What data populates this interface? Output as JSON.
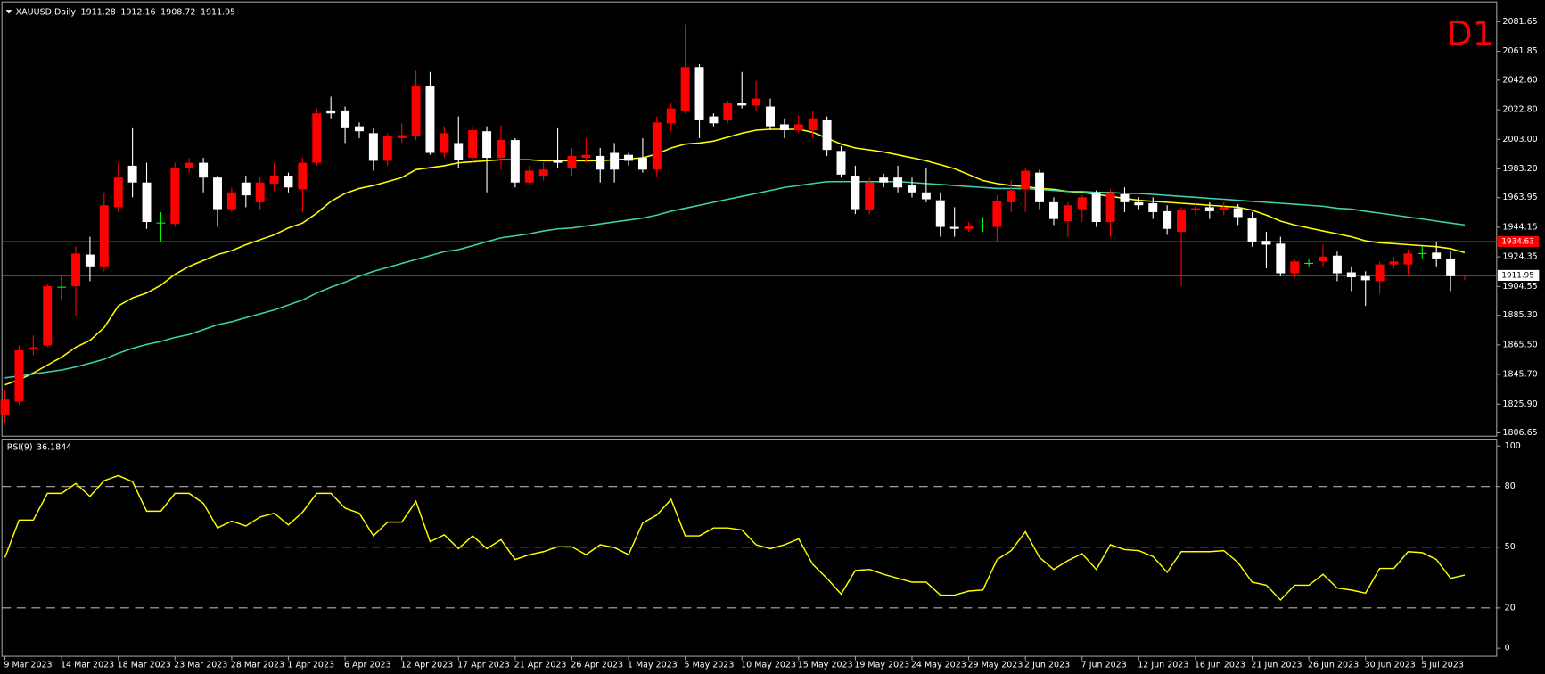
{
  "chart_data": [
    {
      "type": "candlestick",
      "symbol": "XAUUSD,Daily",
      "timeframe": "D1",
      "categories": [
        "9 Mar 2023",
        null,
        null,
        null,
        "14 Mar 2023",
        null,
        null,
        null,
        "18 Mar 2023",
        null,
        null,
        null,
        "23 Mar 2023",
        null,
        null,
        null,
        "28 Mar 2023",
        null,
        null,
        null,
        "1 Apr 2023",
        null,
        null,
        null,
        "6 Apr 2023",
        null,
        null,
        null,
        "12 Apr 2023",
        null,
        null,
        null,
        "17 Apr 2023",
        null,
        null,
        null,
        "21 Apr 2023",
        null,
        null,
        null,
        "26 Apr 2023",
        null,
        null,
        null,
        "1 May 2023",
        null,
        null,
        null,
        "5 May 2023",
        null,
        null,
        null,
        "10 May 2023",
        null,
        null,
        null,
        "15 May 2023",
        null,
        null,
        null,
        "19 May 2023",
        null,
        null,
        null,
        "24 May 2023",
        null,
        null,
        null,
        "29 May 2023",
        null,
        null,
        null,
        "2 Jun 2023",
        null,
        null,
        null,
        "7 Jun 2023",
        null,
        null,
        null,
        "12 Jun 2023",
        null,
        null,
        null,
        "16 Jun 2023",
        null,
        null,
        null,
        "21 Jun 2023",
        null,
        null,
        null,
        "26 Jun 2023",
        null,
        null,
        null,
        "30 Jun 2023",
        null,
        null,
        null,
        "5 Jul 2023",
        null,
        null,
        null
      ],
      "open": [
        1819.0,
        1827.6,
        1862.5,
        1865.2,
        1904.1,
        1904.8,
        1925.9,
        1918.0,
        1957.6,
        1985.3,
        1974.1,
        1947.0,
        1946.4,
        1984.0,
        1987.3,
        1977.4,
        1956.3,
        1974.1,
        1960.9,
        1973.4,
        1978.7,
        1969.5,
        1987.3,
        2022.3,
        2022.3,
        2011.7,
        2007.1,
        1988.6,
        2003.8,
        2005.1,
        2038.8,
        1993.9,
        2000.5,
        1990.6,
        2008.4,
        1990.6,
        2002.5,
        1974.1,
        1978.7,
        1989.3,
        1984.0,
        1990.6,
        1991.9,
        1993.9,
        1992.6,
        1990.6,
        1982.7,
        2013.7,
        2022.3,
        2051.3,
        2018.3,
        2015.7,
        2027.5,
        2025.6,
        2024.9,
        2013.0,
        2009.1,
        2009.1,
        2015.7,
        1995.2,
        1978.7,
        1955.6,
        1977.4,
        1977.4,
        1972.1,
        1967.5,
        1962.2,
        1944.4,
        1943.1,
        1945.0,
        1944.4,
        1960.9,
        1969.5,
        1980.7,
        1960.9,
        1948.3,
        1956.3,
        1967.5,
        1947.7,
        1966.2,
        1960.9,
        1960.2,
        1954.9,
        1941.1,
        1955.6,
        1957.6,
        1955.6,
        1956.9,
        1950.3,
        1935.1,
        1933.2,
        1913.4,
        1920.0,
        1921.3,
        1925.2,
        1914.0,
        1911.4,
        1908.1,
        1919.3,
        1919.3,
        1926.6,
        1927.2,
        1923.3,
        1911.28
      ],
      "high": [
        1835.5,
        1865.2,
        1871.8,
        1906.1,
        1911.4,
        1931.2,
        1937.8,
        1967.5,
        1987.3,
        2010.4,
        1987.3,
        1954.3,
        1987.3,
        1990.6,
        1990.6,
        1978.7,
        1970.8,
        1978.7,
        1977.4,
        1987.3,
        1980.7,
        1990.6,
        2023.6,
        2031.5,
        2024.9,
        2014.3,
        2010.4,
        2007.1,
        2013.7,
        2048.7,
        2048.0,
        2011.7,
        2018.3,
        2011.7,
        2011.7,
        2012.4,
        2003.8,
        1985.3,
        1987.3,
        2010.4,
        1997.2,
        2003.8,
        1997.2,
        2000.5,
        1993.9,
        2003.8,
        2018.3,
        2026.9,
        2079.7,
        2053.3,
        2020.3,
        2028.9,
        2048.0,
        2042.1,
        2030.2,
        2017.0,
        2019.0,
        2022.3,
        2018.3,
        1998.5,
        1985.3,
        1977.4,
        1980.0,
        1985.3,
        1977.4,
        1984.0,
        1967.5,
        1957.6,
        1947.7,
        1951.0,
        1965.5,
        1975.4,
        1984.0,
        1982.7,
        1964.2,
        1960.9,
        1965.5,
        1968.8,
        1969.5,
        1970.8,
        1964.2,
        1964.2,
        1958.9,
        1957.6,
        1960.9,
        1960.9,
        1960.9,
        1959.6,
        1954.3,
        1941.1,
        1937.8,
        1923.3,
        1923.3,
        1932.5,
        1927.9,
        1918.0,
        1914.7,
        1921.3,
        1924.6,
        1929.2,
        1931.2,
        1934.5,
        1927.9,
        1912.16
      ],
      "low": [
        1813.7,
        1825.6,
        1858.6,
        1863.9,
        1894.9,
        1885.0,
        1908.1,
        1914.7,
        1954.3,
        1964.2,
        1943.1,
        1934.5,
        1944.4,
        1980.7,
        1967.5,
        1944.4,
        1954.3,
        1957.6,
        1955.6,
        1968.8,
        1967.5,
        1954.3,
        1985.3,
        2017.0,
        2000.5,
        2003.8,
        1982.0,
        1985.3,
        2000.5,
        2002.5,
        1992.6,
        1990.6,
        1984.0,
        1987.3,
        1967.5,
        1982.7,
        1970.8,
        1972.1,
        1975.4,
        1984.0,
        1978.7,
        1987.3,
        1974.1,
        1974.1,
        1985.3,
        1980.7,
        1977.4,
        2008.4,
        2020.3,
        2003.8,
        2011.7,
        2013.7,
        2023.6,
        2022.3,
        2009.1,
        2003.8,
        2007.1,
        2003.8,
        1991.9,
        1977.4,
        1953.0,
        1953.0,
        1970.8,
        1967.5,
        1964.2,
        1960.9,
        1937.8,
        1937.8,
        1941.1,
        1941.1,
        1933.8,
        1954.3,
        1954.3,
        1956.3,
        1945.7,
        1937.8,
        1947.7,
        1944.4,
        1937.8,
        1954.3,
        1956.3,
        1949.7,
        1939.1,
        1904.8,
        1952.3,
        1949.7,
        1952.3,
        1945.7,
        1931.2,
        1916.7,
        1911.4,
        1910.1,
        1918.0,
        1918.0,
        1908.1,
        1901.5,
        1891.6,
        1899.5,
        1916.7,
        1912.7,
        1923.3,
        1918.0,
        1901.5,
        1908.72
      ],
      "close": [
        1828.9,
        1861.9,
        1863.9,
        1904.8,
        1904.1,
        1926.6,
        1918.0,
        1958.9,
        1977.4,
        1974.1,
        1947.7,
        1947.0,
        1984.0,
        1987.3,
        1977.4,
        1956.3,
        1967.5,
        1965.5,
        1974.1,
        1978.7,
        1970.8,
        1987.3,
        2020.3,
        2020.3,
        2010.4,
        2008.4,
        1988.6,
        2005.1,
        2005.8,
        2038.8,
        1993.9,
        2007.1,
        1989.3,
        2009.1,
        1990.6,
        2002.5,
        1974.1,
        1982.0,
        1982.7,
        1987.3,
        1991.9,
        1992.6,
        1982.7,
        1982.7,
        1988.6,
        1982.7,
        2014.3,
        2023.6,
        2051.3,
        2015.7,
        2013.7,
        2027.5,
        2025.6,
        2030.2,
        2011.7,
        2009.1,
        2013.0,
        2017.0,
        1995.9,
        1979.4,
        1956.3,
        1974.1,
        1974.1,
        1970.8,
        1967.5,
        1962.9,
        1944.4,
        1943.1,
        1945.0,
        1945.0,
        1961.5,
        1968.8,
        1982.0,
        1960.9,
        1949.7,
        1958.9,
        1964.2,
        1947.7,
        1967.5,
        1960.9,
        1958.9,
        1954.3,
        1943.1,
        1955.6,
        1956.9,
        1954.9,
        1957.6,
        1951.0,
        1934.5,
        1932.5,
        1913.4,
        1921.3,
        1920.0,
        1924.6,
        1913.4,
        1910.7,
        1908.7,
        1919.3,
        1921.3,
        1926.6,
        1926.6,
        1923.3,
        1911.4,
        1911.95
      ],
      "up_color": "#ff0000",
      "down_color": "#ffffff",
      "doji_color": "#00ff00",
      "series": [
        {
          "color": "#ffff00",
          "values": [
            1838.8,
            1842.1,
            1846.7,
            1852.0,
            1857.3,
            1863.9,
            1868.5,
            1877.1,
            1891.6,
            1896.9,
            1900.2,
            1905.4,
            1912.7,
            1918.0,
            1921.9,
            1925.9,
            1928.5,
            1932.5,
            1935.8,
            1939.1,
            1943.7,
            1947.0,
            1953.6,
            1961.5,
            1966.8,
            1970.1,
            1972.1,
            1974.7,
            1977.4,
            1982.7,
            1984.0,
            1985.3,
            1987.3,
            1987.9,
            1988.6,
            1989.3,
            1989.3,
            1989.3,
            1988.6,
            1988.6,
            1988.6,
            1988.6,
            1988.6,
            1989.3,
            1989.9,
            1990.6,
            1993.2,
            1997.2,
            1999.8,
            2000.5,
            2001.8,
            2004.4,
            2007.1,
            2009.1,
            2009.7,
            2009.7,
            2009.7,
            2007.7,
            2003.8,
            1999.8,
            1997.2,
            1995.9,
            1994.5,
            1992.6,
            1990.6,
            1988.6,
            1986.0,
            1983.3,
            1979.4,
            1975.4,
            1973.4,
            1972.1,
            1971.4,
            1970.1,
            1969.5,
            1968.1,
            1967.5,
            1966.2,
            1964.8,
            1963.5,
            1962.2,
            1961.5,
            1960.9,
            1960.2,
            1959.6,
            1958.9,
            1958.2,
            1957.6,
            1955.6,
            1952.3,
            1948.3,
            1945.7,
            1943.7,
            1941.7,
            1939.8,
            1937.8,
            1935.1,
            1933.8,
            1933.2,
            1932.5,
            1931.8,
            1931.2,
            1929.9,
            1927.2
          ]
        },
        {
          "color": "#3cd4aa",
          "values": [
            1843.4,
            1844.7,
            1846.0,
            1847.4,
            1848.7,
            1850.7,
            1853.3,
            1855.9,
            1859.9,
            1863.2,
            1865.8,
            1867.8,
            1870.5,
            1872.4,
            1875.7,
            1879.0,
            1881.0,
            1883.7,
            1886.3,
            1888.9,
            1892.2,
            1895.5,
            1900.2,
            1904.1,
            1907.4,
            1911.4,
            1914.7,
            1917.3,
            1920.0,
            1922.6,
            1925.2,
            1927.9,
            1929.2,
            1931.8,
            1934.5,
            1937.1,
            1938.4,
            1939.8,
            1941.7,
            1943.1,
            1943.7,
            1945.0,
            1946.4,
            1947.7,
            1949.0,
            1950.3,
            1952.3,
            1954.9,
            1956.9,
            1958.9,
            1960.9,
            1962.9,
            1964.8,
            1966.8,
            1968.8,
            1970.8,
            1972.1,
            1973.4,
            1974.7,
            1974.7,
            1974.7,
            1974.7,
            1974.7,
            1974.7,
            1974.1,
            1973.4,
            1972.8,
            1972.1,
            1971.4,
            1970.8,
            1970.1,
            1970.1,
            1970.1,
            1969.5,
            1968.8,
            1968.1,
            1968.1,
            1967.5,
            1967.5,
            1966.8,
            1966.8,
            1966.2,
            1965.5,
            1964.8,
            1964.2,
            1963.5,
            1962.9,
            1962.2,
            1961.5,
            1960.9,
            1960.2,
            1959.6,
            1958.9,
            1958.2,
            1956.9,
            1956.3,
            1954.9,
            1953.6,
            1952.3,
            1951.0,
            1949.7,
            1948.3,
            1947.0,
            1945.7
          ]
        }
      ],
      "ylim": [
        1804.45,
        2094.85
      ],
      "yticks": [
        2081.65,
        2061.85,
        {
          "value": 2042.6,
          "label": "2042.60"
        },
        {
          "value": 2022.8,
          "label": "2022.80"
        },
        {
          "value": 2003,
          "label": "2003.00"
        },
        {
          "value": 1983.2,
          "label": "1983.20"
        },
        1963.95,
        1944.15,
        1924.35,
        1904.55,
        {
          "value": 1885.3,
          "label": "1885.30"
        },
        {
          "value": 1865.5,
          "label": "1865.50"
        },
        {
          "value": 1845.7,
          "label": "1845.70"
        },
        {
          "value": 1825.9,
          "label": "1825.90"
        },
        1806.65
      ],
      "price_lines": [
        {
          "value": 1934.63,
          "color": "#ff0000"
        }
      ],
      "bid_line_color": "#8a9aa8"
    },
    {
      "type": "line",
      "title": "RSI(9)",
      "values": [
        44.9,
        63.4,
        63.4,
        76.6,
        76.6,
        81.5,
        75.1,
        82.9,
        85.4,
        82.4,
        67.8,
        67.8,
        76.6,
        76.6,
        71.7,
        59.5,
        62.9,
        60.5,
        64.9,
        66.8,
        61.0,
        67.3,
        76.6,
        76.6,
        69.3,
        66.8,
        55.6,
        62.4,
        62.4,
        72.7,
        52.7,
        56.1,
        49.3,
        55.6,
        49.3,
        53.7,
        43.9,
        46.3,
        47.8,
        50.2,
        50.2,
        46.3,
        51.2,
        49.8,
        46.3,
        62.0,
        65.9,
        73.7,
        55.6,
        55.6,
        59.5,
        59.5,
        58.5,
        51.2,
        49.3,
        51.2,
        54.1,
        41.5,
        34.6,
        26.8,
        38.5,
        39.0,
        36.6,
        34.6,
        32.7,
        32.7,
        26.3,
        26.3,
        28.3,
        28.8,
        43.9,
        48.3,
        57.6,
        44.9,
        39.0,
        43.4,
        46.8,
        39.0,
        51.2,
        48.8,
        48.3,
        45.4,
        37.6,
        47.8,
        47.8,
        47.8,
        48.3,
        42.4,
        32.7,
        31.2,
        23.9,
        31.2,
        31.2,
        36.6,
        29.8,
        28.8,
        27.3,
        39.5,
        39.5,
        47.8,
        47.3,
        43.9,
        34.6,
        36.1844
      ],
      "color": "#ffff00",
      "ylim": [
        -3.9,
        103.4
      ],
      "yticks": [
        100,
        80,
        50,
        20,
        0
      ],
      "levels": [
        80,
        50,
        20
      ]
    }
  ]
}
